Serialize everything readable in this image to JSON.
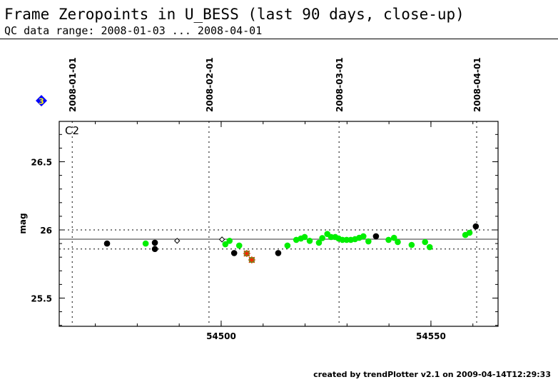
{
  "header": {
    "title": "Frame Zeropoints in U_BESS (last 90 days, close-up)",
    "subtitle": "QC data range: 2008-01-03 ... 2008-04-01"
  },
  "footer": "created by trendPlotter v2.1 on 2009-04-14T12:29:33",
  "badge": {
    "label": "3",
    "color": "#0000ff",
    "text_color": "#ffff00"
  },
  "chart_data": {
    "type": "scatter",
    "panel_label": "C2",
    "ylabel": "mag",
    "xlabel": "",
    "xlim": [
      54461.4,
      54566.0
    ],
    "ylim": [
      25.293,
      26.796
    ],
    "xticks": [
      54500,
      54550
    ],
    "yticks": [
      25.5,
      26,
      26.5
    ],
    "ytick_labels": [
      "25.5",
      "26",
      "26.5"
    ],
    "xtick_labels": [
      "54500",
      "54550"
    ],
    "reference_lines": {
      "median": 25.932,
      "upper": 26.0,
      "lower": 25.86
    },
    "date_markers": [
      {
        "label": "2008-01-01",
        "mjd": 54464.5
      },
      {
        "label": "2008-02-01",
        "mjd": 54497.1
      },
      {
        "label": "2008-03-01",
        "mjd": 54528.1
      },
      {
        "label": "2008-04-01",
        "mjd": 54560.9
      }
    ],
    "series": [
      {
        "name": "ok",
        "color": "#00ee00",
        "marker": "circle",
        "points": [
          [
            54482,
            25.9
          ],
          [
            54501,
            25.895
          ],
          [
            54502,
            25.92
          ],
          [
            54504.3,
            25.885
          ],
          [
            54515.8,
            25.885
          ],
          [
            54517.9,
            25.927
          ],
          [
            54519.0,
            25.937
          ],
          [
            54519.9,
            25.948
          ],
          [
            54521.1,
            25.92
          ],
          [
            54523.3,
            25.906
          ],
          [
            54524.1,
            25.94
          ],
          [
            54525.3,
            25.97
          ],
          [
            54526.2,
            25.948
          ],
          [
            54527.2,
            25.948
          ],
          [
            54528.0,
            25.937
          ],
          [
            54528.9,
            25.927
          ],
          [
            54529.9,
            25.927
          ],
          [
            54530.9,
            25.927
          ],
          [
            54531.9,
            25.932
          ],
          [
            54532.9,
            25.942
          ],
          [
            54533.9,
            25.953
          ],
          [
            54535.1,
            25.916
          ],
          [
            54539.9,
            25.927
          ],
          [
            54541.2,
            25.942
          ],
          [
            54542.1,
            25.911
          ],
          [
            54545.4,
            25.89
          ],
          [
            54548.6,
            25.911
          ],
          [
            54549.7,
            25.874
          ],
          [
            54558.2,
            25.963
          ],
          [
            54559.2,
            25.979
          ]
        ]
      },
      {
        "name": "other",
        "color": "#000000",
        "marker": "circle",
        "points": [
          [
            54472.8,
            25.9
          ],
          [
            54484.2,
            25.906
          ],
          [
            54484.2,
            25.86
          ],
          [
            54503.1,
            25.83
          ],
          [
            54513.6,
            25.83
          ],
          [
            54536.9,
            25.953
          ],
          [
            54560.7,
            26.026
          ]
        ]
      },
      {
        "name": "open",
        "color": "#ffffff",
        "marker": "diamond",
        "points": [
          [
            54489.5,
            25.92
          ],
          [
            54500.2,
            25.93
          ]
        ]
      },
      {
        "name": "flagged",
        "color": "#33bb33",
        "marker": "cross",
        "points": [
          [
            54506.1,
            25.827
          ],
          [
            54507.3,
            25.78
          ]
        ]
      }
    ]
  }
}
